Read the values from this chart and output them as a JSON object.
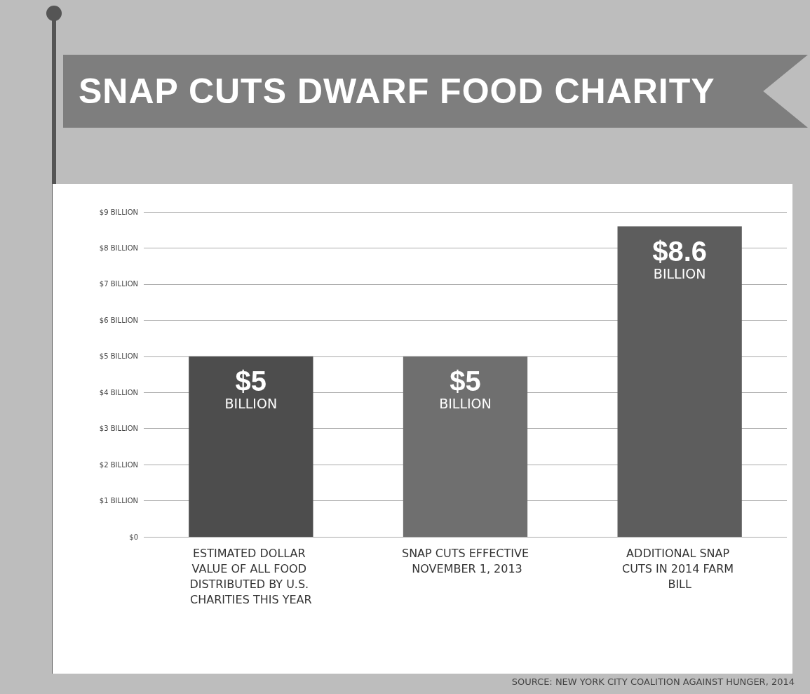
{
  "chart_data": {
    "type": "bar",
    "title": "SNAP CUTS DWARF FOOD CHARITY",
    "categories": [
      "ESTIMATED DOLLAR VALUE OF ALL FOOD DISTRIBUTED BY U.S. CHARITIES THIS YEAR",
      "SNAP CUTS EFFECTIVE NOVEMBER 1, 2013",
      "ADDITIONAL SNAP CUTS IN 2014 FARM BILL"
    ],
    "values": [
      5,
      5,
      8.6
    ],
    "colors": [
      "#4d4d4d",
      "#6f6f6f",
      "#5d5d5d"
    ],
    "value_labels": [
      "$5 BILLION",
      "$5 BILLION",
      "$8.6 BILLION"
    ],
    "ylim": [
      0,
      9
    ],
    "yticks": [
      {
        "value": 0,
        "label": "$0"
      },
      {
        "value": 1,
        "label": "$1 BILLION"
      },
      {
        "value": 2,
        "label": "$2 BILLION"
      },
      {
        "value": 3,
        "label": "$3 BILLION"
      },
      {
        "value": 4,
        "label": "$4 BILLION"
      },
      {
        "value": 5,
        "label": "$5 BILLION"
      },
      {
        "value": 6,
        "label": "$6 BILLION"
      },
      {
        "value": 7,
        "label": "$7 BILLION"
      },
      {
        "value": 8,
        "label": "$8 BILLION"
      },
      {
        "value": 9,
        "label": "$9 BILLION"
      }
    ],
    "grid": "y",
    "annotations": [
      "SOURCE: NEW YORK CITY COALITION AGAINST HUNGER, 2014"
    ]
  }
}
